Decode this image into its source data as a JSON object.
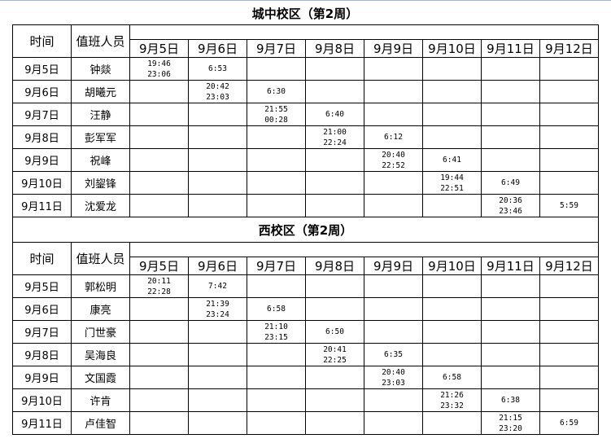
{
  "headers": {
    "time": "时间",
    "person": "值班人员"
  },
  "dates": [
    "9月5日",
    "9月6日",
    "9月7日",
    "9月8日",
    "9月9日",
    "9月10日",
    "9月11日",
    "9月12日"
  ],
  "sections": [
    {
      "title": "城中校区（第2周）",
      "rows": [
        {
          "date": "9月5日",
          "person": "钟燚",
          "cells": [
            "19:46\n23:06",
            "6:53",
            "",
            "",
            "",
            "",
            "",
            ""
          ]
        },
        {
          "date": "9月6日",
          "person": "胡曦元",
          "cells": [
            "",
            "20:42\n23:03",
            "6:30",
            "",
            "",
            "",
            "",
            ""
          ]
        },
        {
          "date": "9月7日",
          "person": "汪静",
          "cells": [
            "",
            "",
            "21:55\n00:28",
            "6:40",
            "",
            "",
            "",
            ""
          ]
        },
        {
          "date": "9月8日",
          "person": "彭军军",
          "cells": [
            "",
            "",
            "",
            "21:00\n22:24",
            "6:12",
            "",
            "",
            ""
          ]
        },
        {
          "date": "9月9日",
          "person": "祝峰",
          "cells": [
            "",
            "",
            "",
            "",
            "20:40\n22:52",
            "6:41",
            "",
            ""
          ]
        },
        {
          "date": "9月10日",
          "person": "刘鋆锋",
          "cells": [
            "",
            "",
            "",
            "",
            "",
            "19:44\n22:51",
            "6:49",
            ""
          ]
        },
        {
          "date": "9月11日",
          "person": "沈爱龙",
          "cells": [
            "",
            "",
            "",
            "",
            "",
            "",
            "20:36\n23:46",
            "5:59"
          ]
        }
      ]
    },
    {
      "title": "西校区（第2周）",
      "rows": [
        {
          "date": "9月5日",
          "person": "郭松明",
          "cells": [
            "20:11\n22:28",
            "7:42",
            "",
            "",
            "",
            "",
            "",
            ""
          ]
        },
        {
          "date": "9月6日",
          "person": "康亮",
          "cells": [
            "",
            "21:39\n23:24",
            "6:58",
            "",
            "",
            "",
            "",
            ""
          ]
        },
        {
          "date": "9月7日",
          "person": "门世豪",
          "cells": [
            "",
            "",
            "21:10\n23:15",
            "6:50",
            "",
            "",
            "",
            ""
          ]
        },
        {
          "date": "9月8日",
          "person": "吴海良",
          "cells": [
            "",
            "",
            "",
            "20:41\n22:25",
            "6:35",
            "",
            "",
            ""
          ]
        },
        {
          "date": "9月9日",
          "person": "文国霞",
          "cells": [
            "",
            "",
            "",
            "",
            "20:40\n23:03",
            "6:58",
            "",
            ""
          ]
        },
        {
          "date": "9月10日",
          "person": "许肯",
          "cells": [
            "",
            "",
            "",
            "",
            "",
            "21:26\n23:32",
            "6:38",
            ""
          ]
        },
        {
          "date": "9月11日",
          "person": "卢佳智",
          "cells": [
            "",
            "",
            "",
            "",
            "",
            "",
            "21:15\n23:20",
            "6:59"
          ]
        }
      ]
    }
  ]
}
